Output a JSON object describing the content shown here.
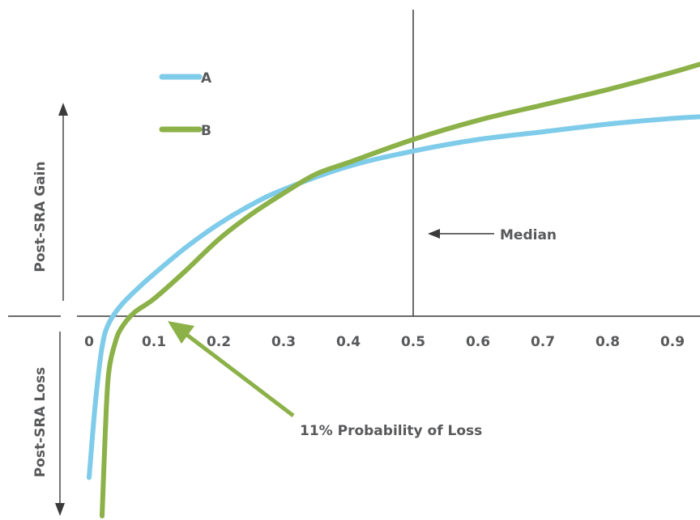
{
  "chart_data": {
    "type": "line",
    "title": "",
    "xlabel": "",
    "ylabel_top": "Post-SRA Gain",
    "ylabel_bottom": "Post-SRA Loss",
    "xlim": [
      0,
      0.95
    ],
    "x_ticks": [
      "0",
      "0.1",
      "0.2",
      "0.3",
      "0.4",
      "0.5",
      "0.6",
      "0.7",
      "0.8",
      "0.9"
    ],
    "grid": false,
    "legend_position": "top-left",
    "series": [
      {
        "name": "A",
        "color": "#7fcbea",
        "x": [
          0.0,
          0.01,
          0.02,
          0.03,
          0.05,
          0.08,
          0.1,
          0.15,
          0.2,
          0.25,
          0.3,
          0.4,
          0.5,
          0.6,
          0.7,
          0.8,
          0.9,
          0.95
        ],
        "y": [
          -0.42,
          -0.22,
          -0.08,
          -0.02,
          0.03,
          0.08,
          0.11,
          0.18,
          0.24,
          0.29,
          0.33,
          0.39,
          0.43,
          0.46,
          0.48,
          0.5,
          0.515,
          0.52
        ]
      },
      {
        "name": "B",
        "color": "#8bb148",
        "x": [
          0.02,
          0.025,
          0.03,
          0.04,
          0.05,
          0.07,
          0.1,
          0.15,
          0.2,
          0.25,
          0.3,
          0.35,
          0.4,
          0.5,
          0.6,
          0.7,
          0.8,
          0.9,
          0.95
        ],
        "y": [
          -0.52,
          -0.3,
          -0.15,
          -0.07,
          -0.03,
          0.01,
          0.045,
          0.12,
          0.2,
          0.265,
          0.32,
          0.37,
          0.4,
          0.46,
          0.51,
          0.55,
          0.59,
          0.635,
          0.66
        ]
      }
    ],
    "annotations": [
      {
        "label": "Median",
        "x": 0.5
      },
      {
        "label": "11% Probability of Loss",
        "x": 0.11
      }
    ]
  }
}
